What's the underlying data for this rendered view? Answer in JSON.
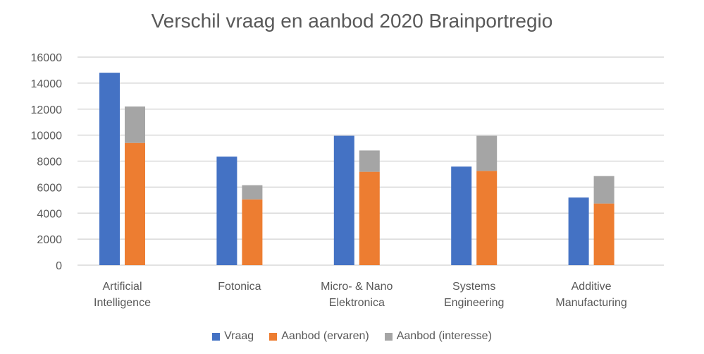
{
  "chart_data": {
    "type": "bar",
    "title": "Verschil vraag en aanbod 2020 Brainportregio",
    "categories": [
      [
        "Artificial",
        "Intelligence"
      ],
      [
        "Fotonica"
      ],
      [
        "Micro- & Nano",
        "Elektronica"
      ],
      [
        "Systems",
        "Engineering"
      ],
      [
        "Additive",
        "Manufacturing"
      ]
    ],
    "series": [
      {
        "name": "Vraag",
        "color": "#4472C4",
        "stack": "a",
        "values": [
          14800,
          8350,
          9950,
          7580,
          5200
        ]
      },
      {
        "name": "Aanbod (ervaren)",
        "color": "#ED7D31",
        "stack": "b",
        "values": [
          9400,
          5060,
          7180,
          7250,
          4740
        ]
      },
      {
        "name": "Aanbod (interesse)",
        "color": "#A5A5A5",
        "stack": "b",
        "values": [
          2800,
          1090,
          1640,
          2700,
          2110
        ]
      }
    ],
    "ylim": [
      0,
      16000
    ],
    "yticks": [
      0,
      2000,
      4000,
      6000,
      8000,
      10000,
      12000,
      14000,
      16000
    ],
    "grid": true,
    "legend": "bottom",
    "xlabel": "",
    "ylabel": ""
  }
}
